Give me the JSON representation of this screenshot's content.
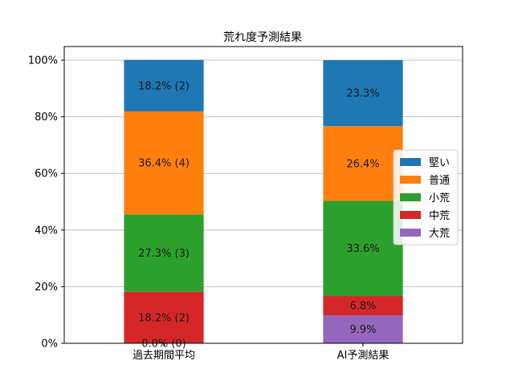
{
  "chart_data": {
    "type": "bar",
    "stacked": true,
    "title": "荒れ度予測結果",
    "categories": [
      "過去期間平均",
      "AI予測結果"
    ],
    "series": [
      {
        "name": "大荒",
        "color": "#9467bd",
        "values": [
          0.0,
          9.9
        ],
        "labels": [
          "0.0% (0)",
          "9.9%"
        ]
      },
      {
        "name": "中荒",
        "color": "#d62728",
        "values": [
          18.2,
          6.8
        ],
        "labels": [
          "18.2% (2)",
          "6.8%"
        ]
      },
      {
        "name": "小荒",
        "color": "#2ca02c",
        "values": [
          27.3,
          33.6
        ],
        "labels": [
          "27.3% (3)",
          "33.6%"
        ]
      },
      {
        "name": "普通",
        "color": "#ff7f0e",
        "values": [
          36.4,
          26.4
        ],
        "labels": [
          "36.4% (4)",
          "26.4%"
        ]
      },
      {
        "name": "堅い",
        "color": "#1f77b4",
        "values": [
          18.2,
          23.3
        ],
        "labels": [
          "18.2% (2)",
          "23.3%"
        ]
      }
    ],
    "legend_order": [
      "堅い",
      "普通",
      "小荒",
      "中荒",
      "大荒"
    ],
    "yticks": [
      "0%",
      "20%",
      "40%",
      "60%",
      "80%",
      "100%"
    ],
    "ylim": [
      0,
      100
    ],
    "grid": "y",
    "legend": "center-right"
  }
}
